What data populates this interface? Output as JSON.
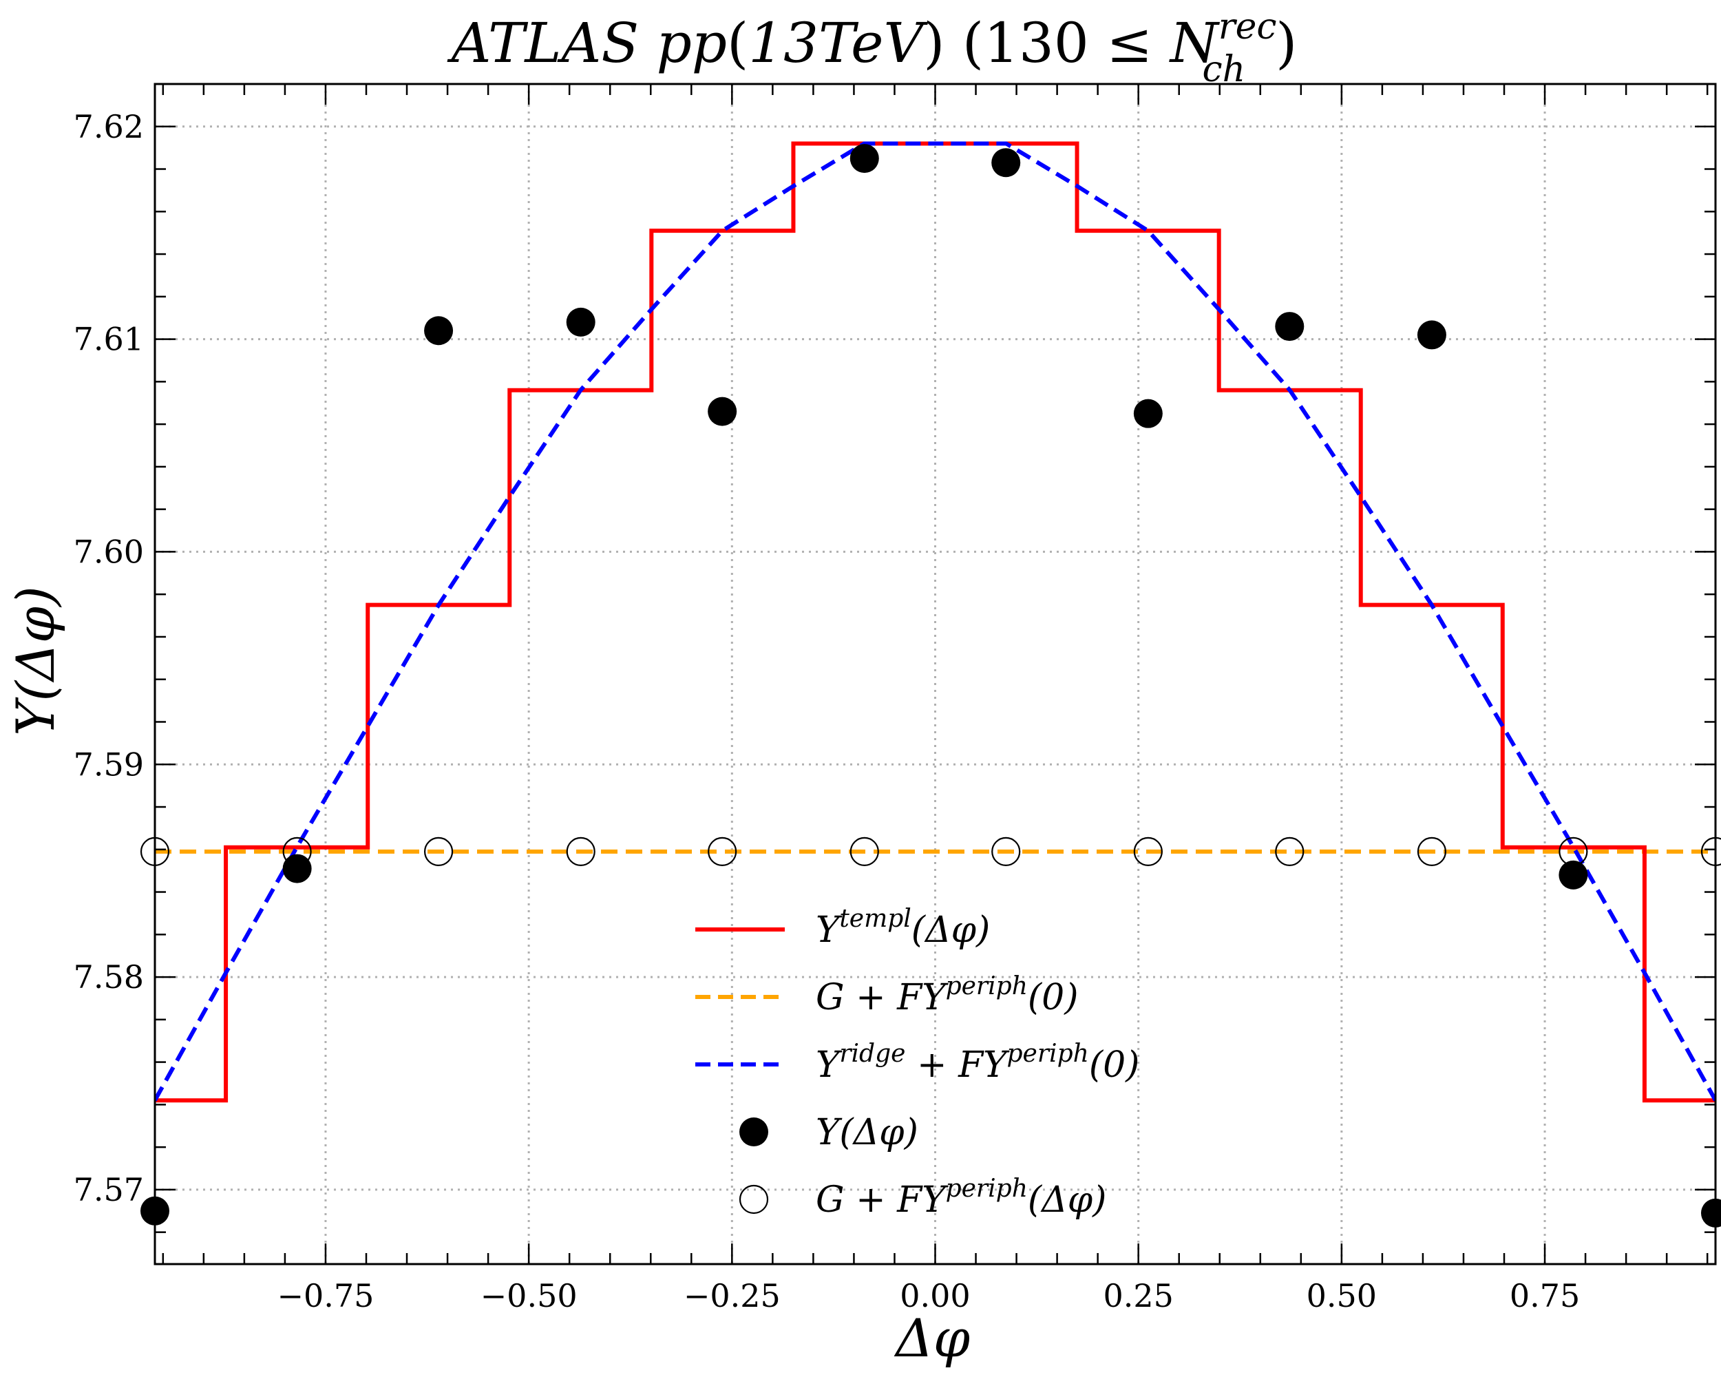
{
  "chart_data": {
    "type": "line",
    "title": "ATLAS pp(13TeV) (130 ≤ N_ch^rec)",
    "title_parts": {
      "experiment": "ATLAS",
      "system": "pp",
      "energy": "13TeV",
      "cut_lower": "130",
      "relation": "≤",
      "variable": "N",
      "var_sub": "ch",
      "var_sup": "rec"
    },
    "xlabel": "Δφ",
    "ylabel": "Y(Δφ)",
    "xlim": [
      -0.96,
      0.96
    ],
    "ylim": [
      7.5665,
      7.622
    ],
    "xticks": [
      -0.75,
      -0.5,
      -0.25,
      0.0,
      0.25,
      0.5,
      0.75
    ],
    "xtick_labels": [
      "−0.75",
      "−0.50",
      "−0.25",
      "0.00",
      "0.25",
      "0.50",
      "0.75"
    ],
    "yticks": [
      7.57,
      7.58,
      7.59,
      7.6,
      7.61,
      7.62
    ],
    "ytick_labels": [
      "7.57",
      "7.58",
      "7.59",
      "7.60",
      "7.61",
      "7.62"
    ],
    "grid": true,
    "legend_position": "lower-center",
    "colors": {
      "templ": "#ff0000",
      "periph0": "#ffa500",
      "ridge": "#0000ff",
      "data": "#000000"
    },
    "series": [
      {
        "name": "Y^templ(Δφ)",
        "legend": {
          "base": "Y",
          "sup": "templ",
          "tail": "(Δφ)"
        },
        "kind": "step",
        "color": "#ff0000",
        "bin_edges": [
          -0.96,
          -0.8727,
          -0.6981,
          -0.5236,
          -0.3491,
          -0.1745,
          0.0,
          0.1745,
          0.3491,
          0.5236,
          0.6981,
          0.8727,
          0.96
        ],
        "values": [
          7.5742,
          7.5861,
          7.5975,
          7.6076,
          7.6151,
          7.6192,
          7.6192,
          7.6151,
          7.6076,
          7.5975,
          7.5861,
          7.5742
        ]
      },
      {
        "name": "G + FY^periph(0)",
        "legend": {
          "base": "G + FY",
          "sup": "periph",
          "tail": "(0)"
        },
        "kind": "hline",
        "color": "#ffa500",
        "value": 7.5859
      },
      {
        "name": "Y^ridge + FY^periph(0)",
        "legend": {
          "base": "Y",
          "sup": "ridge",
          "mid": " + FY",
          "sup2": "periph",
          "tail": "(0)"
        },
        "kind": "dashed-curve",
        "color": "#0000ff",
        "x": [
          -0.96,
          -0.8727,
          -0.7854,
          -0.6981,
          -0.6109,
          -0.5236,
          -0.4363,
          -0.3491,
          -0.2618,
          -0.1745,
          -0.0873,
          0.0,
          0.0873,
          0.1745,
          0.2618,
          0.3491,
          0.4363,
          0.5236,
          0.6109,
          0.6981,
          0.7854,
          0.8727,
          0.96
        ],
        "y": [
          7.5742,
          7.5802,
          7.5861,
          7.5918,
          7.5975,
          7.6026,
          7.6076,
          7.6114,
          7.6151,
          7.6172,
          7.6192,
          7.6192,
          7.6192,
          7.6172,
          7.6151,
          7.6114,
          7.6076,
          7.6026,
          7.5975,
          7.5918,
          7.5861,
          7.5802,
          7.5742
        ]
      },
      {
        "name": "Y(Δφ)",
        "legend": {
          "base": "Y",
          "tail": "(Δφ)"
        },
        "kind": "filled-markers",
        "color": "#000000",
        "x": [
          -0.96,
          -0.785,
          -0.611,
          -0.436,
          -0.262,
          -0.087,
          0.087,
          0.262,
          0.436,
          0.611,
          0.785,
          0.96
        ],
        "y": [
          7.569,
          7.5851,
          7.6104,
          7.6108,
          7.6066,
          7.6185,
          7.6183,
          7.6065,
          7.6106,
          7.6102,
          7.5848,
          7.5689
        ]
      },
      {
        "name": "G + FY^periph(Δφ)",
        "legend": {
          "base": "G + FY",
          "sup": "periph",
          "tail": "(Δφ)"
        },
        "kind": "open-markers",
        "color": "#000000",
        "x": [
          -0.96,
          -0.785,
          -0.611,
          -0.436,
          -0.262,
          -0.087,
          0.087,
          0.262,
          0.436,
          0.611,
          0.785,
          0.96
        ],
        "y": [
          7.5859,
          7.5859,
          7.5859,
          7.5859,
          7.5859,
          7.5859,
          7.5859,
          7.5859,
          7.5859,
          7.5859,
          7.5859,
          7.5859
        ]
      }
    ]
  }
}
